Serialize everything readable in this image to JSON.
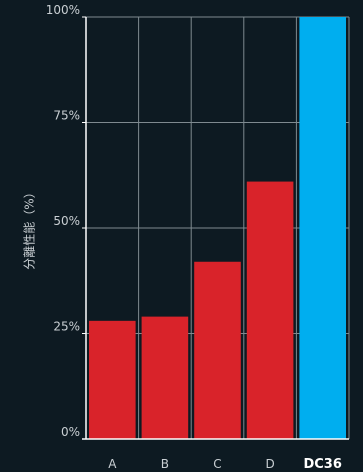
{
  "chart_data": {
    "type": "bar",
    "ylabel": "分離性能（%）",
    "categories": [
      "A",
      "B",
      "C",
      "D",
      "DC36"
    ],
    "highlight": "DC36",
    "values": [
      28,
      29,
      42,
      61,
      100
    ],
    "ylim": [
      0,
      100
    ],
    "yticks": [
      {
        "value": 0,
        "label": "0%"
      },
      {
        "value": 25,
        "label": "25%"
      },
      {
        "value": 50,
        "label": "50%"
      },
      {
        "value": 75,
        "label": "75%"
      },
      {
        "value": 100,
        "label": "100%"
      }
    ],
    "grid": true,
    "colors": {
      "background": "#0d1a22",
      "bar": "#d9232a",
      "highlight": "#00aeef",
      "grid": "#7f8a90",
      "axis": "#ffffff",
      "text": "#c9cfd3",
      "highlight_text": "#ffffff"
    }
  }
}
